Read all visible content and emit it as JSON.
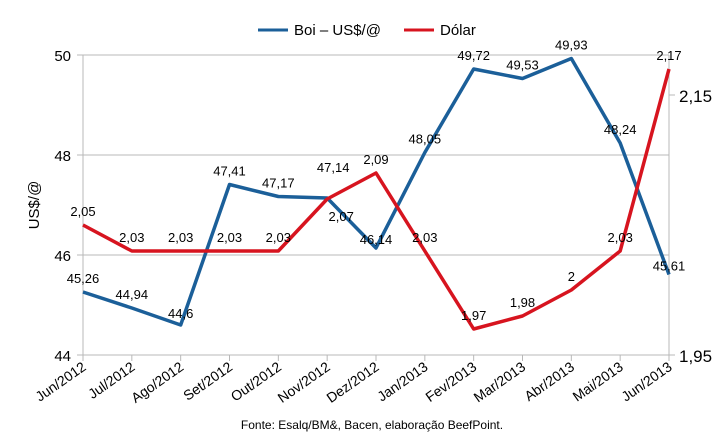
{
  "chart_data": {
    "type": "line",
    "categories": [
      "Jun/2012",
      "Jul/2012",
      "Ago/2012",
      "Set/2012",
      "Out/2012",
      "Nov/2012",
      "Dez/2012",
      "Jan/2013",
      "Fev/2013",
      "Mar/2013",
      "Abr/2013",
      "Mai/2013",
      "Jun/2013"
    ],
    "series": [
      {
        "name": "Boi – US$/@",
        "axis": "left",
        "color": "#1b5f99",
        "values": [
          45.26,
          44.94,
          44.6,
          47.41,
          47.17,
          47.14,
          46.14,
          48.05,
          49.72,
          49.53,
          49.93,
          48.24,
          45.61
        ],
        "labels": [
          "45,26",
          "44,94",
          "44,6",
          "47,41",
          "47,17",
          "47,14",
          "46,14",
          "48,05",
          "49,72",
          "49,53",
          "49,93",
          "48,24",
          "45,61"
        ]
      },
      {
        "name": "Dólar",
        "axis": "right",
        "color": "#d7141f",
        "values": [
          2.05,
          2.03,
          2.03,
          2.03,
          2.03,
          2.07,
          2.09,
          2.03,
          1.97,
          1.98,
          2,
          2.03,
          2.17
        ],
        "labels": [
          "2,05",
          "2,03",
          "2,03",
          "2,03",
          "2,03",
          "2,07",
          "2,09",
          "2,03",
          "1,97",
          "1,98",
          "2",
          "2,03",
          "2,17"
        ]
      }
    ],
    "ylabel": "US$/@",
    "ylim": [
      44,
      50
    ],
    "yticks": [
      "44",
      "46",
      "48",
      "50"
    ],
    "y2lim": [
      1.95,
      2.18
    ],
    "y2ticks": [
      "1,95",
      "2,15"
    ],
    "legend": "top-center",
    "grid": true,
    "source": "Fonte: Esalq/BM&, Bacen, elaboração BeefPoint."
  }
}
